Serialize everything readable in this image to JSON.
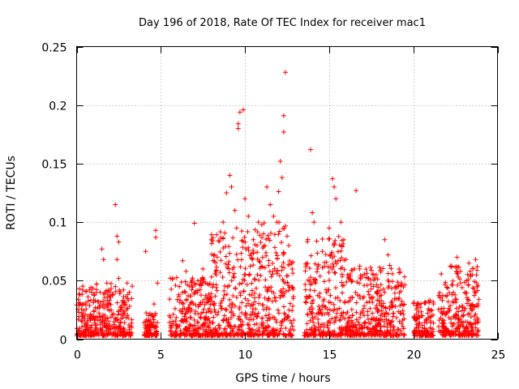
{
  "chart_data": {
    "type": "scatter",
    "title": "Day 196 of 2018, Rate Of TEC Index for receiver mac1",
    "xlabel": "GPS time / hours",
    "ylabel": "ROTI / TECUs",
    "xlim": [
      0,
      25
    ],
    "ylim": [
      0,
      0.25
    ],
    "xticks": [
      0,
      5,
      10,
      15,
      20,
      25
    ],
    "yticks": [
      0,
      0.05,
      0.1,
      0.15,
      0.2,
      0.25
    ],
    "xtick_labels": [
      "0",
      "5",
      "10",
      "15",
      "20",
      "25"
    ],
    "ytick_labels": [
      "0",
      "0.05",
      "0.1",
      "0.15",
      "0.2",
      "0.25"
    ],
    "grid": true,
    "marker": "+",
    "series": [
      {
        "name": "ROTI",
        "color": "#ff0000",
        "activity_bands": [
          {
            "start": 0.0,
            "end": 3.3,
            "peak": 0.045
          },
          {
            "start": 4.0,
            "end": 4.8,
            "peak": 0.02
          },
          {
            "start": 5.5,
            "end": 8.0,
            "peak": 0.05
          },
          {
            "start": 8.0,
            "end": 10.0,
            "peak": 0.09
          },
          {
            "start": 10.0,
            "end": 12.9,
            "peak": 0.1
          },
          {
            "start": 13.5,
            "end": 16.0,
            "peak": 0.085
          },
          {
            "start": 16.0,
            "end": 19.5,
            "peak": 0.06
          },
          {
            "start": 20.0,
            "end": 21.2,
            "peak": 0.03
          },
          {
            "start": 21.5,
            "end": 23.9,
            "peak": 0.06
          }
        ],
        "points": [
          [
            0.2,
            0.038
          ],
          [
            0.4,
            0.03
          ],
          [
            0.1,
            0.034
          ],
          [
            1.5,
            0.077
          ],
          [
            1.6,
            0.068
          ],
          [
            1.8,
            0.048
          ],
          [
            2.3,
            0.115
          ],
          [
            2.4,
            0.088
          ],
          [
            2.5,
            0.083
          ],
          [
            2.4,
            0.068
          ],
          [
            2.5,
            0.052
          ],
          [
            3.0,
            0.048
          ],
          [
            4.1,
            0.075
          ],
          [
            4.7,
            0.093
          ],
          [
            4.7,
            0.087
          ],
          [
            4.8,
            0.048
          ],
          [
            4.6,
            0.03
          ],
          [
            5.7,
            0.052
          ],
          [
            6.3,
            0.067
          ],
          [
            6.5,
            0.058
          ],
          [
            7.0,
            0.099
          ],
          [
            7.5,
            0.06
          ],
          [
            8.0,
            0.085
          ],
          [
            8.2,
            0.072
          ],
          [
            8.7,
            0.1
          ],
          [
            8.9,
            0.125
          ],
          [
            9.1,
            0.14
          ],
          [
            9.2,
            0.13
          ],
          [
            9.4,
            0.11
          ],
          [
            9.5,
            0.095
          ],
          [
            9.6,
            0.184
          ],
          [
            9.6,
            0.18
          ],
          [
            9.7,
            0.194
          ],
          [
            9.9,
            0.196
          ],
          [
            10.0,
            0.12
          ],
          [
            10.2,
            0.105
          ],
          [
            10.5,
            0.085
          ],
          [
            10.8,
            0.1
          ],
          [
            11.1,
            0.09
          ],
          [
            11.3,
            0.13
          ],
          [
            11.5,
            0.115
          ],
          [
            11.7,
            0.105
          ],
          [
            11.9,
            0.1
          ],
          [
            12.0,
            0.126
          ],
          [
            12.1,
            0.152
          ],
          [
            12.2,
            0.138
          ],
          [
            12.3,
            0.177
          ],
          [
            12.3,
            0.191
          ],
          [
            12.4,
            0.228
          ],
          [
            12.5,
            0.088
          ],
          [
            12.6,
            0.08
          ],
          [
            13.9,
            0.162
          ],
          [
            14.0,
            0.108
          ],
          [
            14.1,
            0.1
          ],
          [
            14.6,
            0.075
          ],
          [
            15.0,
            0.095
          ],
          [
            15.2,
            0.137
          ],
          [
            15.3,
            0.13
          ],
          [
            15.4,
            0.12
          ],
          [
            15.7,
            0.1
          ],
          [
            16.0,
            0.068
          ],
          [
            16.6,
            0.127
          ],
          [
            16.8,
            0.06
          ],
          [
            17.3,
            0.052
          ],
          [
            17.8,
            0.055
          ],
          [
            18.3,
            0.085
          ],
          [
            18.5,
            0.072
          ],
          [
            18.6,
            0.063
          ],
          [
            19.3,
            0.048
          ],
          [
            21.0,
            0.033
          ],
          [
            21.2,
            0.03
          ],
          [
            22.3,
            0.038
          ],
          [
            22.6,
            0.07
          ],
          [
            22.8,
            0.058
          ],
          [
            23.3,
            0.065
          ],
          [
            23.5,
            0.055
          ],
          [
            23.7,
            0.068
          ],
          [
            23.8,
            0.062
          ]
        ]
      }
    ]
  }
}
